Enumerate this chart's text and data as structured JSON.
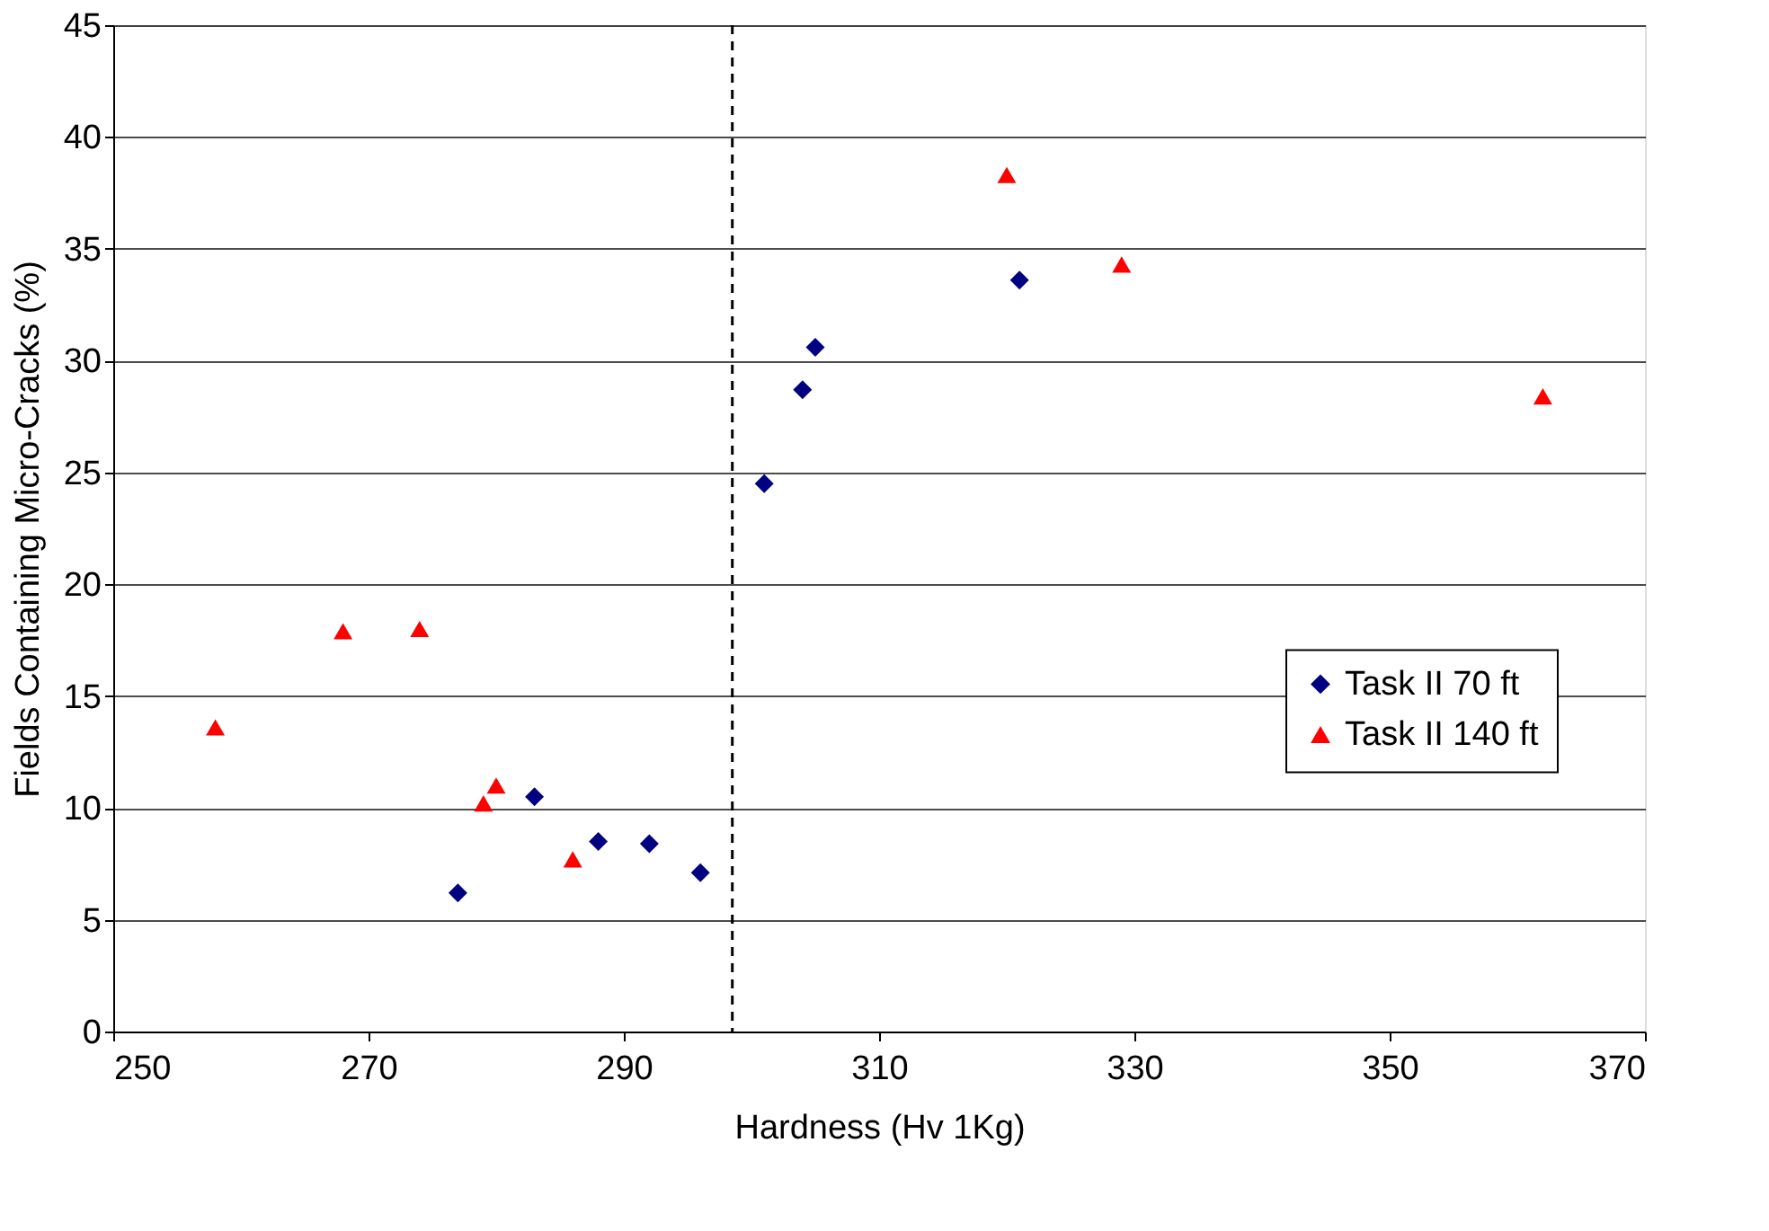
{
  "chart_data": {
    "type": "scatter",
    "xlabel": "Hardness (Hv 1Kg)",
    "ylabel": "Fields Containing Micro-Cracks (%)",
    "xlim": [
      250,
      370
    ],
    "xticks": [
      250,
      270,
      290,
      310,
      330,
      350,
      370
    ],
    "ylim": [
      0,
      45
    ],
    "yticks": [
      0,
      5,
      10,
      15,
      20,
      25,
      30,
      35,
      40,
      45
    ],
    "grid": "y",
    "legend": "right",
    "series": [
      {
        "name": "Task II 70 ft",
        "color": "#000080",
        "marker": "diamond",
        "x": [
          277,
          283,
          288,
          292,
          296,
          301,
          304,
          305,
          321
        ],
        "values": [
          6.2,
          10.5,
          8.5,
          8.4,
          7.1,
          24.5,
          28.7,
          30.6,
          33.6
        ]
      },
      {
        "name": "Task II 140 ft",
        "color": "#ff0000",
        "marker": "triangle",
        "x": [
          258,
          268,
          274,
          279,
          280,
          286,
          320,
          329,
          362
        ],
        "values": [
          13.6,
          17.9,
          18.0,
          10.2,
          11.0,
          7.7,
          38.3,
          34.3,
          28.4
        ]
      }
    ],
    "ref_lines": [
      {
        "axis": "x",
        "value": 298.5,
        "line_style": "dashed",
        "color": "#000000"
      }
    ]
  }
}
